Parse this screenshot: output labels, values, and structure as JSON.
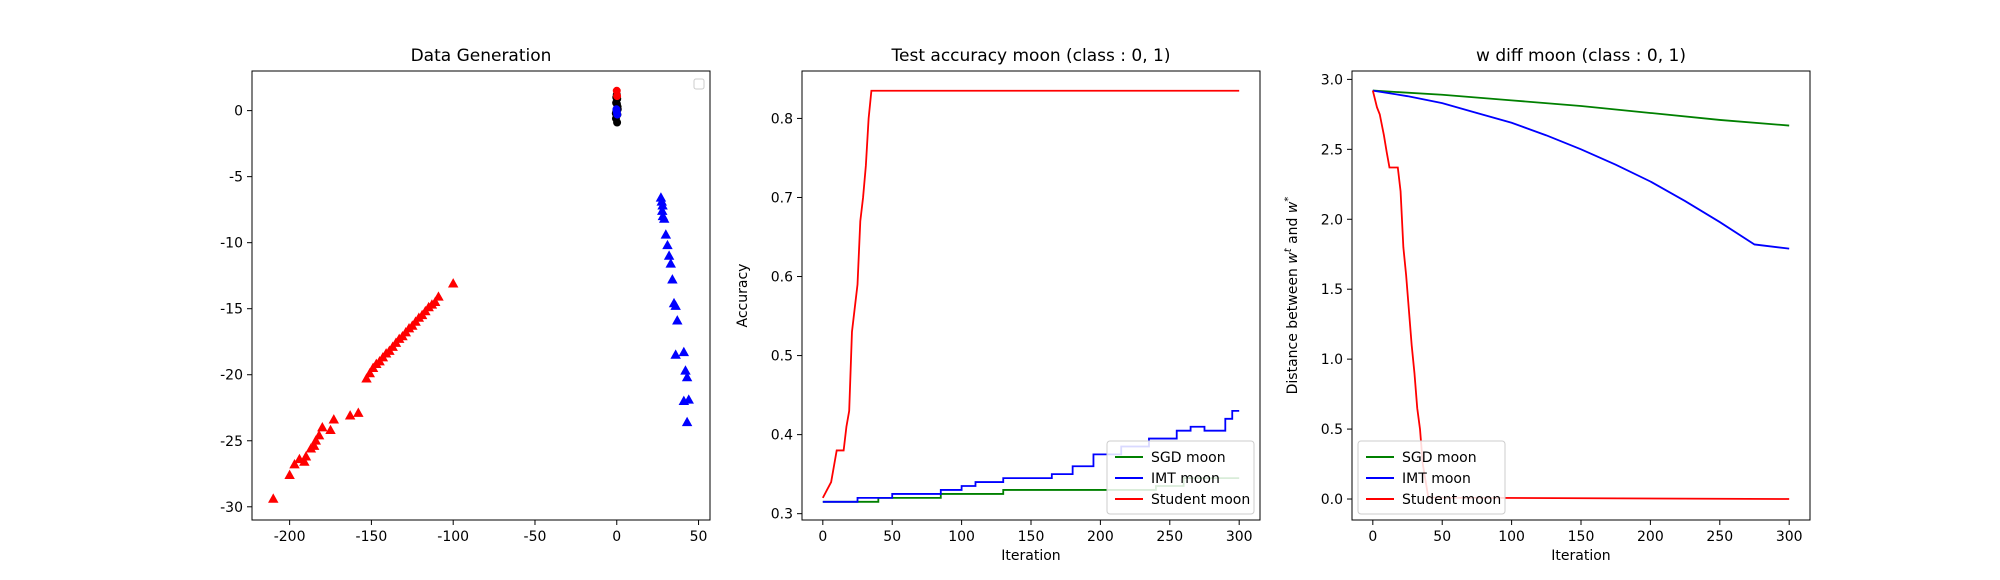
{
  "chart_data": [
    {
      "type": "scatter",
      "title": "Data Generation",
      "xlabel": "",
      "ylabel": "",
      "xlim": [
        -223,
        57
      ],
      "ylim": [
        -31,
        3
      ],
      "xticks": [
        -200,
        -150,
        -100,
        -50,
        0,
        50
      ],
      "yticks": [
        0,
        -5,
        -10,
        -15,
        -20,
        -25,
        -30
      ],
      "legend": "top-right (empty)",
      "series": [
        {
          "marker": "triangle",
          "color": "#ff0000",
          "points": [
            [
              -210,
              -29.4
            ],
            [
              -200,
              -27.6
            ],
            [
              -197,
              -26.8
            ],
            [
              -194,
              -26.4
            ],
            [
              -191,
              -26.6
            ],
            [
              -190,
              -26.2
            ],
            [
              -187,
              -25.6
            ],
            [
              -185,
              -25.4
            ],
            [
              -184,
              -25
            ],
            [
              -182,
              -24.6
            ],
            [
              -180,
              -24
            ],
            [
              -175,
              -24.2
            ],
            [
              -173,
              -23.4
            ],
            [
              -163,
              -23.1
            ],
            [
              -158,
              -22.9
            ],
            [
              -153,
              -20.3
            ],
            [
              -151,
              -19.9
            ],
            [
              -149,
              -19.5
            ],
            [
              -147,
              -19.2
            ],
            [
              -145,
              -19
            ],
            [
              -143,
              -18.7
            ],
            [
              -141,
              -18.4
            ],
            [
              -139,
              -18.2
            ],
            [
              -137,
              -17.9
            ],
            [
              -135,
              -17.6
            ],
            [
              -133,
              -17.3
            ],
            [
              -131,
              -17.1
            ],
            [
              -129,
              -16.8
            ],
            [
              -127,
              -16.5
            ],
            [
              -125,
              -16.3
            ],
            [
              -123,
              -16.0
            ],
            [
              -121,
              -15.7
            ],
            [
              -119,
              -15.5
            ],
            [
              -117,
              -15.2
            ],
            [
              -115,
              -14.9
            ],
            [
              -113,
              -14.7
            ],
            [
              -111,
              -14.5
            ],
            [
              -109,
              -14.1
            ],
            [
              -100,
              -13.1
            ]
          ]
        },
        {
          "marker": "triangle",
          "color": "#0000ff",
          "points": [
            [
              27,
              -6.6
            ],
            [
              27.5,
              -6.9
            ],
            [
              28,
              -7.2
            ],
            [
              27.8,
              -7.6
            ],
            [
              28.2,
              -8
            ],
            [
              29,
              -8.2
            ],
            [
              30,
              -9.4
            ],
            [
              31,
              -10.2
            ],
            [
              32,
              -11
            ],
            [
              33,
              -11.6
            ],
            [
              34,
              -12.8
            ],
            [
              35,
              -14.6
            ],
            [
              36,
              -14.8
            ],
            [
              37,
              -15.9
            ],
            [
              36,
              -18.5
            ],
            [
              41,
              -18.3
            ],
            [
              42,
              -19.7
            ],
            [
              43,
              -20.2
            ],
            [
              41,
              -22
            ],
            [
              44,
              -21.9
            ],
            [
              43,
              -23.6
            ]
          ]
        },
        {
          "marker": "circle",
          "color": "#000000",
          "points": [
            [
              0,
              1.2
            ],
            [
              0.3,
              0.9
            ],
            [
              -0.4,
              0.6
            ],
            [
              0.5,
              0.3
            ],
            [
              -0.2,
              0
            ],
            [
              0.4,
              -0.3
            ],
            [
              -0.5,
              -0.6
            ],
            [
              0.2,
              -0.9
            ],
            [
              -0.3,
              1
            ],
            [
              0.6,
              0.1
            ],
            [
              -0.6,
              -0.2
            ],
            [
              0.1,
              0.5
            ]
          ]
        },
        {
          "marker": "circle",
          "color": "#0000ff",
          "points": [
            [
              0,
              -0.1
            ],
            [
              -0.2,
              0.1
            ],
            [
              0.3,
              -0.3
            ]
          ]
        },
        {
          "marker": "circle",
          "color": "#ff0000",
          "points": [
            [
              0,
              1.5
            ],
            [
              0.2,
              1.1
            ]
          ]
        }
      ]
    },
    {
      "type": "line",
      "title": "Test accuracy moon (class : 0, 1)",
      "xlabel": "Iteration",
      "ylabel": "Accuracy",
      "xlim": [
        -15,
        315
      ],
      "ylim": [
        0.292,
        0.86
      ],
      "xticks": [
        0,
        50,
        100,
        150,
        200,
        250,
        300
      ],
      "yticks": [
        0.3,
        0.4,
        0.5,
        0.6,
        0.7,
        0.8
      ],
      "legend": "lower-right",
      "series": [
        {
          "name": "SGD moon",
          "color": "#008000",
          "step": true,
          "x": [
            0,
            10,
            40,
            85,
            130,
            200,
            240,
            260,
            300
          ],
          "y": [
            0.315,
            0.315,
            0.32,
            0.325,
            0.33,
            0.33,
            0.335,
            0.345,
            0.345
          ]
        },
        {
          "name": "IMT moon",
          "color": "#0000ff",
          "step": true,
          "x": [
            0,
            10,
            25,
            50,
            85,
            100,
            110,
            130,
            150,
            165,
            180,
            195,
            215,
            235,
            255,
            265,
            275,
            290,
            295,
            300
          ],
          "y": [
            0.315,
            0.315,
            0.32,
            0.325,
            0.33,
            0.335,
            0.34,
            0.345,
            0.345,
            0.35,
            0.36,
            0.375,
            0.385,
            0.395,
            0.405,
            0.41,
            0.405,
            0.42,
            0.43,
            0.43
          ]
        },
        {
          "name": "Student moon",
          "color": "#ff0000",
          "step": false,
          "x": [
            0,
            3,
            6,
            8,
            10,
            12,
            15,
            17,
            19,
            21,
            23,
            25,
            27,
            29,
            31,
            33,
            35,
            300
          ],
          "y": [
            0.32,
            0.33,
            0.34,
            0.36,
            0.38,
            0.38,
            0.38,
            0.41,
            0.43,
            0.53,
            0.56,
            0.59,
            0.67,
            0.7,
            0.74,
            0.8,
            0.835,
            0.835
          ]
        }
      ]
    },
    {
      "type": "line",
      "title": "w diff moon (class : 0, 1)",
      "xlabel": "Iteration",
      "ylabel": "Distance between ",
      "ylabel_w1": "w",
      "ylabel_t": "t",
      "ylabel_mid": " and ",
      "ylabel_w2": "w",
      "ylabel_star": "*",
      "xlim": [
        -15,
        315
      ],
      "ylim": [
        -0.15,
        3.06
      ],
      "xticks": [
        0,
        50,
        100,
        150,
        200,
        250,
        300
      ],
      "yticks": [
        0.0,
        0.5,
        1.0,
        1.5,
        2.0,
        2.5,
        3.0
      ],
      "legend": "lower-left",
      "series": [
        {
          "name": "SGD moon",
          "color": "#008000",
          "x": [
            0,
            50,
            100,
            150,
            200,
            250,
            300
          ],
          "y": [
            2.92,
            2.89,
            2.85,
            2.81,
            2.76,
            2.71,
            2.67
          ]
        },
        {
          "name": "IMT moon",
          "color": "#0000ff",
          "x": [
            0,
            25,
            50,
            75,
            100,
            125,
            150,
            175,
            200,
            225,
            250,
            275,
            300
          ],
          "y": [
            2.92,
            2.88,
            2.83,
            2.76,
            2.69,
            2.6,
            2.5,
            2.39,
            2.27,
            2.13,
            1.98,
            1.82,
            1.79
          ]
        },
        {
          "name": "Student moon",
          "color": "#ff0000",
          "x": [
            0,
            3,
            5,
            8,
            10,
            12,
            14,
            16,
            18,
            20,
            22,
            24,
            26,
            28,
            30,
            32,
            34,
            36,
            40,
            300
          ],
          "y": [
            2.92,
            2.8,
            2.75,
            2.6,
            2.48,
            2.37,
            2.37,
            2.37,
            2.37,
            2.2,
            1.8,
            1.6,
            1.35,
            1.1,
            0.9,
            0.65,
            0.5,
            0.25,
            0.01,
            0.0
          ]
        }
      ]
    }
  ]
}
